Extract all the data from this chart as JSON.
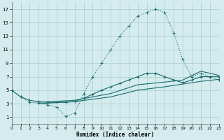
{
  "xlabel": "Humidex (Indice chaleur)",
  "bg_color": "#d4ecee",
  "grid_color": "#a8cccc",
  "line_color": "#1a6b6b",
  "xlim": [
    0,
    23
  ],
  "ylim": [
    0,
    18
  ],
  "xticks": [
    0,
    1,
    2,
    3,
    4,
    5,
    6,
    7,
    8,
    9,
    10,
    11,
    12,
    13,
    14,
    15,
    16,
    17,
    18,
    19,
    20,
    21,
    22,
    23
  ],
  "yticks": [
    1,
    3,
    5,
    7,
    9,
    11,
    13,
    15,
    17
  ],
  "curve1_x": [
    0,
    1,
    2,
    3,
    4,
    5,
    6,
    7,
    8,
    9,
    10,
    11,
    12,
    13,
    14,
    15,
    16,
    17,
    18,
    19,
    20,
    21,
    22,
    23
  ],
  "curve1_y": [
    5,
    4,
    3.2,
    3.1,
    2.8,
    2.5,
    1.1,
    1.6,
    4.5,
    7.0,
    9.0,
    11.0,
    13.0,
    14.5,
    16.0,
    16.5,
    17.0,
    16.5,
    13.5,
    9.5,
    7.0,
    7.5,
    7.0,
    6.5
  ],
  "curve2_x": [
    0,
    1,
    2,
    3,
    4,
    5,
    6,
    7,
    8,
    9,
    10,
    11,
    12,
    13,
    14,
    15,
    16,
    17,
    18,
    19,
    20,
    21,
    22,
    23
  ],
  "curve2_y": [
    5.0,
    4.0,
    3.5,
    3.3,
    3.2,
    3.2,
    3.2,
    3.3,
    3.8,
    4.4,
    5.0,
    5.5,
    6.0,
    6.5,
    7.0,
    7.5,
    7.5,
    7.0,
    6.5,
    6.1,
    6.5,
    7.0,
    7.0,
    7.0
  ],
  "curve3_x": [
    3,
    7,
    11,
    14,
    17,
    19,
    21,
    23
  ],
  "curve3_y": [
    3.2,
    3.5,
    4.5,
    5.8,
    6.2,
    6.5,
    7.8,
    7.2
  ],
  "curve4_x": [
    3,
    7,
    11,
    14,
    17,
    19,
    21,
    23
  ],
  "curve4_y": [
    3.0,
    3.3,
    4.0,
    5.0,
    5.5,
    5.9,
    6.3,
    6.6
  ]
}
